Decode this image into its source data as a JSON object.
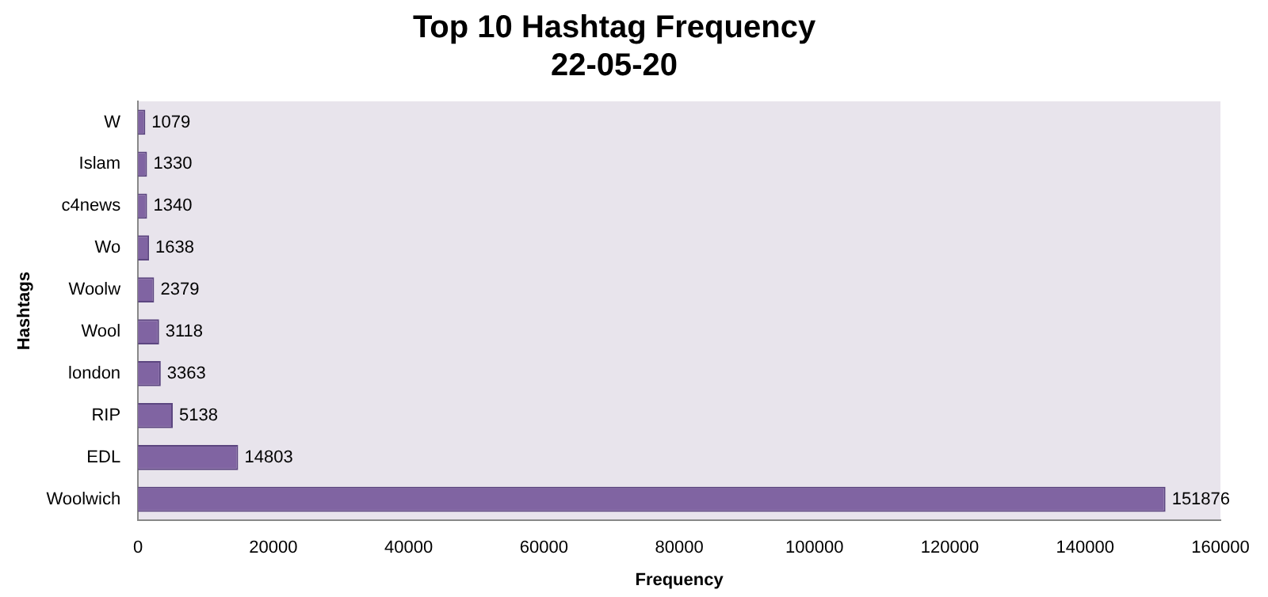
{
  "chart_data": {
    "type": "bar",
    "orientation": "horizontal",
    "title": "Top 10 Hashtag Frequency",
    "subtitle": "22-05-20",
    "xlabel": "Frequency",
    "ylabel": "Hashtags",
    "categories": [
      "W",
      "Islam",
      "c4news",
      "Wo",
      "Woolw",
      "Wool",
      "london",
      "RIP",
      "EDL",
      "Woolwich"
    ],
    "values": [
      1079,
      1330,
      1340,
      1638,
      2379,
      3118,
      3363,
      5138,
      14803,
      151876
    ],
    "color": "#8064a2",
    "xlim": [
      0,
      160000
    ],
    "xticks": [
      0,
      20000,
      40000,
      60000,
      80000,
      100000,
      120000,
      140000,
      160000
    ],
    "data_labels": true,
    "grid": false,
    "legend": false
  }
}
